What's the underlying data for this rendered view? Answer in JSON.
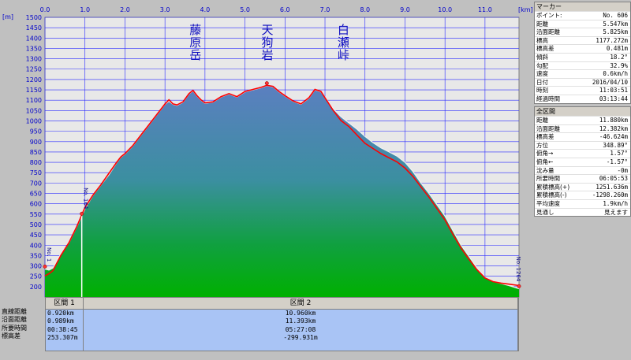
{
  "chart_data": {
    "type": "area",
    "xunit": "[km]",
    "yunit": "[m]",
    "xlim": [
      0,
      11.85
    ],
    "ylim": [
      150,
      1500
    ],
    "xticks": [
      "0.0",
      "1.0",
      "2.0",
      "3.0",
      "4.0",
      "5.0",
      "6.0",
      "7.0",
      "8.0",
      "9.0",
      "10.0",
      "11.0"
    ],
    "yticks": [
      "200",
      "250",
      "300",
      "350",
      "400",
      "450",
      "500",
      "550",
      "600",
      "650",
      "700",
      "750",
      "800",
      "850",
      "900",
      "950",
      "1000",
      "1050",
      "1100",
      "1150",
      "1200",
      "1250",
      "1300",
      "1350",
      "1400",
      "1450",
      "1500"
    ],
    "grid": true,
    "profile": {
      "x": [
        0.0,
        0.1,
        0.2,
        0.4,
        0.6,
        0.8,
        0.92,
        1.0,
        1.2,
        1.4,
        1.6,
        1.8,
        1.9,
        2.0,
        2.2,
        2.4,
        2.6,
        2.8,
        3.0,
        3.1,
        3.2,
        3.3,
        3.45,
        3.6,
        3.7,
        3.8,
        3.9,
        4.0,
        4.2,
        4.4,
        4.6,
        4.8,
        5.0,
        5.2,
        5.4,
        5.547,
        5.7,
        5.85,
        6.0,
        6.2,
        6.4,
        6.6,
        6.75,
        6.9,
        7.0,
        7.2,
        7.4,
        7.6,
        7.8,
        8.0,
        8.2,
        8.4,
        8.6,
        8.8,
        9.0,
        9.2,
        9.4,
        9.6,
        9.8,
        10.0,
        10.2,
        10.4,
        10.6,
        10.8,
        11.0,
        11.2,
        11.4,
        11.6,
        11.85
      ],
      "surface": [
        285,
        280,
        290,
        360,
        410,
        490,
        540,
        575,
        640,
        690,
        740,
        800,
        825,
        840,
        880,
        930,
        980,
        1030,
        1080,
        1095,
        1080,
        1075,
        1090,
        1130,
        1145,
        1120,
        1100,
        1085,
        1090,
        1115,
        1130,
        1115,
        1140,
        1150,
        1160,
        1170,
        1165,
        1140,
        1120,
        1095,
        1080,
        1110,
        1150,
        1140,
        1115,
        1060,
        1020,
        990,
        960,
        925,
        895,
        870,
        850,
        830,
        800,
        755,
        700,
        650,
        595,
        540,
        470,
        400,
        345,
        290,
        245,
        225,
        215,
        205,
        190
      ],
      "track": [
        240,
        250,
        265,
        340,
        400,
        480,
        535,
        570,
        630,
        680,
        735,
        790,
        815,
        830,
        870,
        920,
        970,
        1020,
        1070,
        1090,
        1070,
        1065,
        1080,
        1120,
        1135,
        1110,
        1090,
        1075,
        1080,
        1105,
        1120,
        1105,
        1130,
        1140,
        1150,
        1160,
        1155,
        1130,
        1110,
        1085,
        1070,
        1100,
        1140,
        1130,
        1100,
        1040,
        990,
        960,
        920,
        880,
        855,
        830,
        810,
        790,
        760,
        720,
        670,
        620,
        565,
        510,
        440,
        375,
        320,
        270,
        230,
        212,
        205,
        200,
        193
      ]
    },
    "annotations": [
      {
        "text": "藤原岳",
        "x": 3.75
      },
      {
        "text": "天狗岩",
        "x": 5.55
      },
      {
        "text": "白瀬峠",
        "x": 7.45
      }
    ],
    "points": [
      {
        "label": "No. 1",
        "x": 0.0,
        "y": 285
      },
      {
        "label": "No. 164",
        "x": 0.92,
        "y": 540
      },
      {
        "label": "No. 606",
        "x": 5.547,
        "y": 1170
      },
      {
        "label": "No. 1264",
        "x": 11.85,
        "y": 190
      }
    ],
    "segment_divider_x": 0.92
  },
  "marker": {
    "title": "マーカー",
    "rows": [
      {
        "k": "ポイント:",
        "v": "No. 606"
      },
      {
        "k": "距離",
        "v": "5.547km"
      },
      {
        "k": "沿面距離",
        "v": "5.825km"
      },
      {
        "k": "標高",
        "v": "1177.272m"
      },
      {
        "k": "標高差",
        "v": "0.481m"
      },
      {
        "k": "傾斜",
        "v": "18.2°"
      },
      {
        "k": "勾配",
        "v": "32.9%"
      },
      {
        "k": "速度",
        "v": "0.6km/h"
      },
      {
        "k": "日付",
        "v": "2016/04/10"
      },
      {
        "k": "時刻",
        "v": "11:03:51"
      },
      {
        "k": "経過時間",
        "v": "03:13:44"
      }
    ]
  },
  "total": {
    "title": "全区間",
    "rows": [
      {
        "k": "距離",
        "v": "11.880km"
      },
      {
        "k": "沿面距離",
        "v": "12.382km"
      },
      {
        "k": "標高差",
        "v": "-46.624m"
      },
      {
        "k": "方位",
        "v": "348.89°"
      },
      {
        "k": "俯角→",
        "v": "1.57°"
      },
      {
        "k": "俯角←",
        "v": "-1.57°"
      },
      {
        "k": "沈み量",
        "v": "-0m"
      },
      {
        "k": "所要時間",
        "v": "06:05:53"
      },
      {
        "k": "累積標高(+)",
        "v": "1251.636m"
      },
      {
        "k": "累積標高(-)",
        "v": "-1298.260m"
      },
      {
        "k": "平均速度",
        "v": "1.9km/h"
      },
      {
        "k": "見通し",
        "v": "見えます"
      }
    ]
  },
  "segments": {
    "row_labels": [
      "直線距離",
      "沿面距離",
      "所要時間",
      "標高差"
    ],
    "items": [
      {
        "name": "区間 1",
        "values": [
          "0.920km",
          "0.989km",
          "00:38:45",
          "253.307m"
        ]
      },
      {
        "name": "区間 2",
        "values": [
          "10.960km",
          "11.393km",
          "05:27:08",
          "-299.931m"
        ]
      }
    ]
  },
  "colors": {
    "plot_bg": "#e8e8e8",
    "fill_top": "#5b7fc0",
    "fill_bottom": "#00b000",
    "track": "#ff0000",
    "grid": "#2a2aff",
    "axis_text": "#0000cc"
  }
}
